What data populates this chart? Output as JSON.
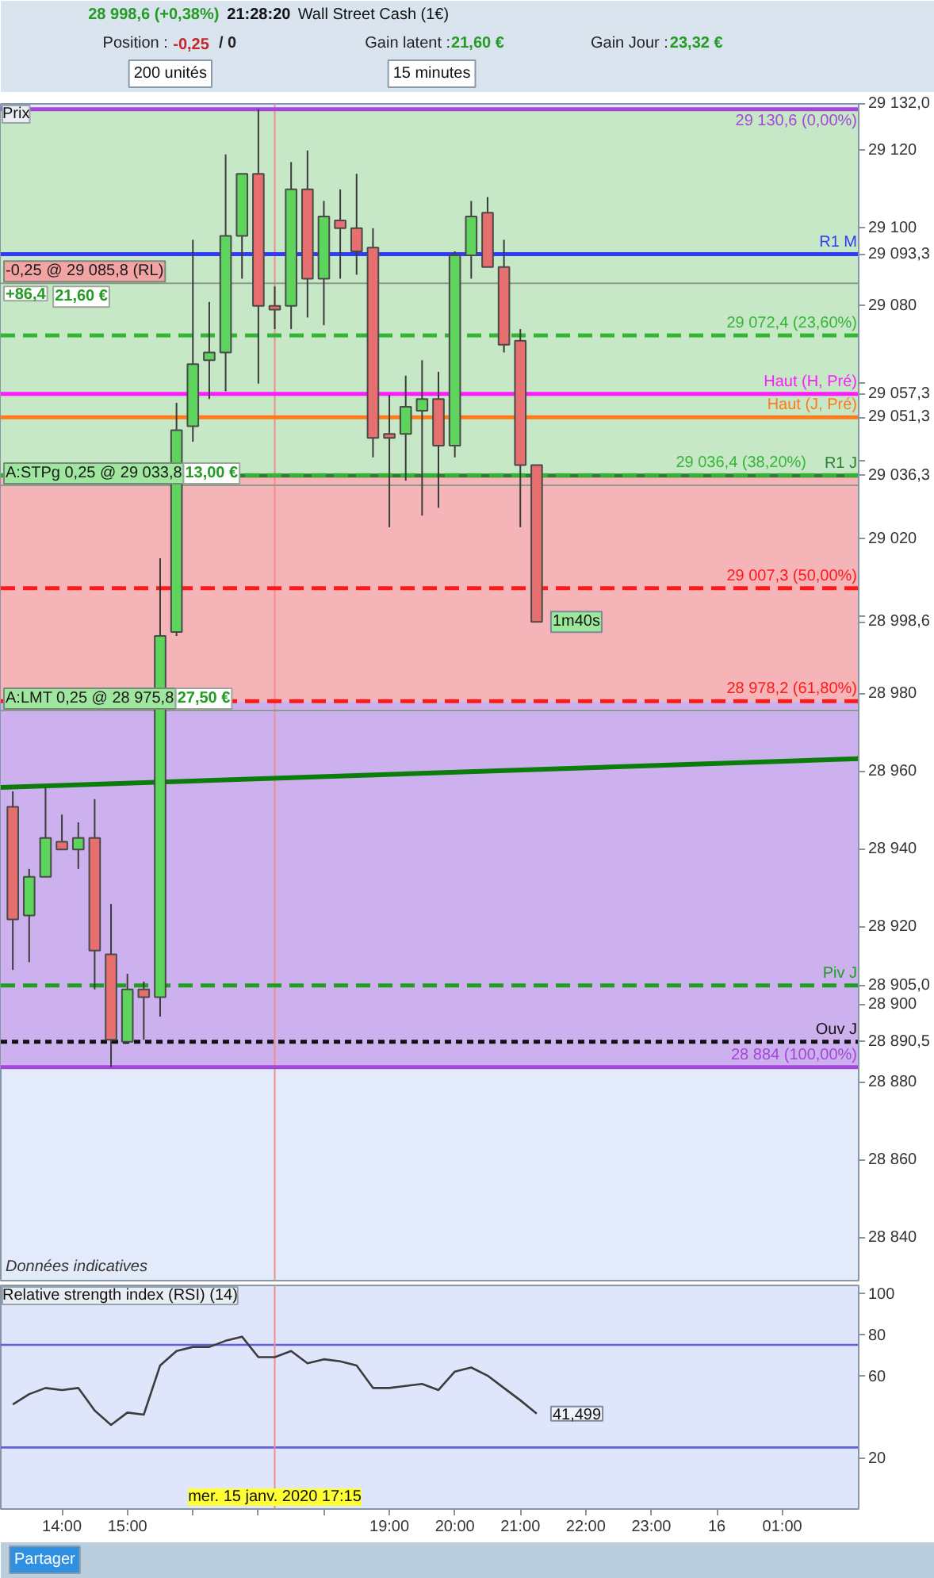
{
  "chart_data": [
    {
      "type": "other",
      "annotations": [
        "28 998,6 (+0,38%)",
        "21:28:20",
        "Wall Street Cash (1€)",
        "Position :",
        "-0,25",
        "/ 0",
        "Gain latent :",
        "21,60 €",
        "Gain Jour :",
        "23,32 €",
        "200 unités",
        "15 minutes"
      ]
    },
    {
      "type": "candlestick",
      "title": "Prix",
      "x": [
        "2020-01-15T13:15",
        "2020-01-15T13:30",
        "2020-01-15T13:45",
        "2020-01-15T14:00",
        "2020-01-15T14:15",
        "2020-01-15T14:30",
        "2020-01-15T14:45",
        "2020-01-15T15:00",
        "2020-01-15T15:15",
        "2020-01-15T15:30",
        "2020-01-15T15:45",
        "2020-01-15T16:00",
        "2020-01-15T16:15",
        "2020-01-15T16:30",
        "2020-01-15T16:45",
        "2020-01-15T17:00",
        "2020-01-15T17:15",
        "2020-01-15T17:30",
        "2020-01-15T17:45",
        "2020-01-15T18:00",
        "2020-01-15T18:15",
        "2020-01-15T18:30",
        "2020-01-15T18:45",
        "2020-01-15T19:00",
        "2020-01-15T19:15",
        "2020-01-15T19:30",
        "2020-01-15T19:45",
        "2020-01-15T20:00",
        "2020-01-15T20:15",
        "2020-01-15T20:30",
        "2020-01-15T20:45",
        "2020-01-15T21:00",
        "2020-01-15T21:15"
      ],
      "ohlc": [
        [
          28951,
          28955,
          28909,
          28922
        ],
        [
          28923,
          28935,
          28911,
          28933
        ],
        [
          28933,
          28956,
          28933,
          28943
        ],
        [
          28942,
          28949,
          28940,
          28940
        ],
        [
          28940,
          28947,
          28935,
          28943
        ],
        [
          28943,
          28953,
          28904,
          28914
        ],
        [
          28913,
          28926,
          28884,
          28891
        ],
        [
          28890.5,
          28908,
          28890.5,
          28904
        ],
        [
          28904,
          28906,
          28891,
          28902
        ],
        [
          28902,
          29015,
          28897,
          28995
        ],
        [
          28996,
          29055,
          28995,
          29048
        ],
        [
          29049,
          29097,
          29045,
          29065
        ],
        [
          29066,
          29081,
          29056,
          29068
        ],
        [
          29068,
          29119,
          29058,
          29098
        ],
        [
          29098,
          29114,
          29087,
          29114
        ],
        [
          29114,
          29130.6,
          29060,
          29080
        ],
        [
          29080,
          29085,
          29074,
          29079
        ],
        [
          29080,
          29117,
          29074,
          29110
        ],
        [
          29110,
          29120,
          29077,
          29087
        ],
        [
          29087,
          29107,
          29075,
          29103
        ],
        [
          29102,
          29110,
          29087,
          29100
        ],
        [
          29100,
          29114,
          29088,
          29094
        ],
        [
          29095,
          29100,
          29041,
          29046
        ],
        [
          29047,
          29057,
          29023,
          29046
        ],
        [
          29047,
          29062,
          29035,
          29054
        ],
        [
          29053,
          29066,
          29026,
          29056
        ],
        [
          29056,
          29063,
          29028,
          29044
        ],
        [
          29044,
          29094,
          29041,
          29093
        ],
        [
          29093,
          29107,
          29087,
          29103
        ],
        [
          29104,
          29108,
          29090,
          29090
        ],
        [
          29090,
          29097,
          29068,
          29070
        ],
        [
          29071,
          29074,
          29023,
          29039
        ],
        [
          29039,
          29039,
          28998.6,
          28998.6
        ]
      ],
      "colors": [
        "#e86f6f",
        "#5dd55d",
        "#5dd55d",
        "#e86f6f",
        "#5dd55d",
        "#e86f6f",
        "#e86f6f",
        "#5dd55d",
        "#e86f6f",
        "#5dd55d",
        "#5dd55d",
        "#5dd55d",
        "#5dd55d",
        "#5dd55d",
        "#5dd55d",
        "#e86f6f",
        "#e86f6f",
        "#5dd55d",
        "#e86f6f",
        "#5dd55d",
        "#e86f6f",
        "#e86f6f",
        "#e86f6f",
        "#e86f6f",
        "#5dd55d",
        "#5dd55d",
        "#e86f6f",
        "#5dd55d",
        "#5dd55d",
        "#e86f6f",
        "#e86f6f",
        "#e86f6f",
        "#e86f6f"
      ],
      "series": [
        {
          "type": "line",
          "x": [
            "2020-01-15T13:04",
            "2020-01-16T02:10"
          ],
          "values": [
            28956,
            28963.4
          ],
          "color": "#0b7d0b"
        }
      ],
      "xlim": [
        "2020-01-15T13:04",
        "2020-01-16T02:10"
      ],
      "ylim": [
        28829,
        29132
      ],
      "yticks": [
        {
          "value": 28840,
          "label": "28 840"
        },
        {
          "value": 28860,
          "label": "28 860"
        },
        {
          "value": 28880,
          "label": "28 880"
        },
        {
          "value": 28890.5,
          "label": "28 890,5"
        },
        {
          "value": 28900,
          "label": "28 900"
        },
        {
          "value": 28905,
          "label": "28 905,0"
        },
        {
          "value": 28920,
          "label": "28 920"
        },
        {
          "value": 28940,
          "label": "28 940"
        },
        {
          "value": 28960,
          "label": "28 960"
        },
        {
          "value": 28980,
          "label": "28 980"
        },
        {
          "value": 28998.6,
          "label": "28 998,6"
        },
        {
          "value": 29000,
          "label": null
        },
        {
          "value": 29020,
          "label": "29 020"
        },
        {
          "value": 29036.3,
          "label": "29 036,3"
        },
        {
          "value": 29040,
          "label": null
        },
        {
          "value": 29051.3,
          "label": "29 051,3"
        },
        {
          "value": 29057.3,
          "label": "29 057,3"
        },
        {
          "value": 29060,
          "label": null
        },
        {
          "value": 29080,
          "label": "29 080"
        },
        {
          "value": 29093.3,
          "label": "29 093,3"
        },
        {
          "value": 29100,
          "label": "29 100"
        },
        {
          "value": 29120,
          "label": "29 120"
        },
        {
          "value": 29132,
          "label": "29 132,0"
        }
      ],
      "tick_labels": "y",
      "bands": [
        {
          "axis": "y",
          "from": 29036.4,
          "to": 29130.6,
          "color": "#c6e8c6"
        },
        {
          "axis": "y",
          "from": 28978.2,
          "to": 29036.4,
          "color": "#f5b4b8"
        },
        {
          "axis": "y",
          "from": 28884,
          "to": 28978.2,
          "color": "#cdb1ee"
        }
      ],
      "ref_lines": [
        {
          "axis": "x",
          "value": "2020-01-15T17:15",
          "color": "#f08c8c"
        },
        {
          "axis": "y",
          "value": 29130.6,
          "label": "29 130,6 (0,00%)",
          "color": "#a447d8"
        },
        {
          "axis": "y",
          "value": 29093.3,
          "label": "R1 M",
          "color": "#2f3bf5"
        },
        {
          "axis": "y",
          "value": 29085.8,
          "label": "-0,25 @ 29 085,8 (RL)",
          "color": "#8e9a8e",
          "line_style": "solid"
        },
        {
          "axis": "y",
          "value": 29072.4,
          "label": "29 072,4 (23,60%)",
          "color": "#35b535",
          "line_style": "dashed"
        },
        {
          "axis": "y",
          "value": 29057.3,
          "label": "Haut (H, Pré)",
          "color": "#ff1aff"
        },
        {
          "axis": "y",
          "value": 29051.3,
          "label": "Haut (J, Pré)",
          "color": "#ff7a1a"
        },
        {
          "axis": "y",
          "value": 29036.3,
          "label": "R1 J",
          "color": "#2e7d32"
        },
        {
          "axis": "y",
          "value": 29036.4,
          "label": "29 036,4 (38,20%)",
          "color": "#35b535",
          "line_style": "dashed"
        },
        {
          "axis": "y",
          "value": 29033.8,
          "label": "A:STPg 0,25 @ 29 033,8",
          "color": "#8e9a8e",
          "line_style": "solid"
        },
        {
          "axis": "y",
          "value": 29007.3,
          "label": "29 007,3 (50,00%)",
          "color": "#ff1a1a",
          "line_style": "dashed"
        },
        {
          "axis": "y",
          "value": 28978.2,
          "label": "28 978,2 (61,80%)",
          "color": "#ff1a1a",
          "line_style": "dashed"
        },
        {
          "axis": "y",
          "value": 28975.8,
          "label": "A:LMT 0,25 @ 28 975,8",
          "color": "#8e9a8e",
          "line_style": "solid"
        },
        {
          "axis": "y",
          "value": 28905,
          "label": "Piv J",
          "color": "#1f9e1f",
          "line_style": "dashed"
        },
        {
          "axis": "y",
          "value": 28890.5,
          "label": "Ouv J",
          "color": "#111111",
          "line_style": "dotted"
        },
        {
          "axis": "y",
          "value": 28884,
          "label": "28 884 (100,00%)",
          "color": "#a447d8"
        }
      ],
      "annotations": [
        "Données indicatives",
        "+86,4",
        "21,60 €",
        "13,00 €",
        "27,50 €",
        {
          "text": "1m40s",
          "x": "2020-01-15T21:15",
          "y": 28998.6
        }
      ]
    },
    {
      "type": "line",
      "title": "Relative strength index (RSI) (14)",
      "x": [
        "2020-01-15T13:15",
        "2020-01-15T13:30",
        "2020-01-15T13:45",
        "2020-01-15T14:00",
        "2020-01-15T14:15",
        "2020-01-15T14:30",
        "2020-01-15T14:45",
        "2020-01-15T15:00",
        "2020-01-15T15:15",
        "2020-01-15T15:30",
        "2020-01-15T15:45",
        "2020-01-15T16:00",
        "2020-01-15T16:15",
        "2020-01-15T16:30",
        "2020-01-15T16:45",
        "2020-01-15T17:00",
        "2020-01-15T17:15",
        "2020-01-15T17:30",
        "2020-01-15T17:45",
        "2020-01-15T18:00",
        "2020-01-15T18:15",
        "2020-01-15T18:30",
        "2020-01-15T18:45",
        "2020-01-15T19:00",
        "2020-01-15T19:15",
        "2020-01-15T19:30",
        "2020-01-15T19:45",
        "2020-01-15T20:00",
        "2020-01-15T20:15",
        "2020-01-15T20:30",
        "2020-01-15T20:45",
        "2020-01-15T21:00",
        "2020-01-15T21:15"
      ],
      "series": [
        {
          "color": "#3c3c3c",
          "values": [
            46,
            51,
            54,
            53,
            54,
            43,
            36,
            42,
            41,
            65,
            72,
            74,
            74,
            77,
            79,
            69,
            69,
            72,
            66,
            68,
            67,
            65,
            54,
            54,
            55,
            56,
            53,
            62,
            64,
            60,
            54,
            48,
            41.499
          ]
        }
      ],
      "xlim": [
        "2020-01-15T13:04",
        "2020-01-16T02:10"
      ],
      "ylim": [
        -5,
        104
      ],
      "yticks": [
        20,
        60,
        80,
        100
      ],
      "xticks": [
        {
          "value": "2020-01-15T14:00",
          "label": "14:00"
        },
        {
          "value": "2020-01-15T15:00",
          "label": "15:00"
        },
        {
          "value": "2020-01-15T16:00",
          "label": null
        },
        {
          "value": "2020-01-15T17:00",
          "label": null
        },
        {
          "value": "2020-01-15T18:00",
          "label": null
        },
        {
          "value": "2020-01-15T19:00",
          "label": "19:00"
        },
        {
          "value": "2020-01-15T20:00",
          "label": "20:00"
        },
        {
          "value": "2020-01-15T21:00",
          "label": "21:00"
        },
        {
          "value": "2020-01-15T22:00",
          "label": "22:00"
        },
        {
          "value": "2020-01-15T23:00",
          "label": "23:00"
        },
        {
          "value": "2020-01-16T00:00",
          "label": "16"
        },
        {
          "value": "2020-01-16T01:00",
          "label": "01:00"
        }
      ],
      "ref_lines": [
        {
          "axis": "y",
          "value": 75,
          "color": "#5f5fdc"
        },
        {
          "axis": "y",
          "value": 25,
          "color": "#5f5fdc"
        },
        {
          "axis": "x",
          "value": "2020-01-15T17:15",
          "label": "mer. 15 janv. 2020 17:15",
          "color": "#f08c8c"
        }
      ],
      "annotations": [
        {
          "text": "41,499",
          "x": "2020-01-15T21:15",
          "y": 41.499
        }
      ]
    },
    {
      "type": "other",
      "annotations": [
        "Partager"
      ]
    }
  ]
}
